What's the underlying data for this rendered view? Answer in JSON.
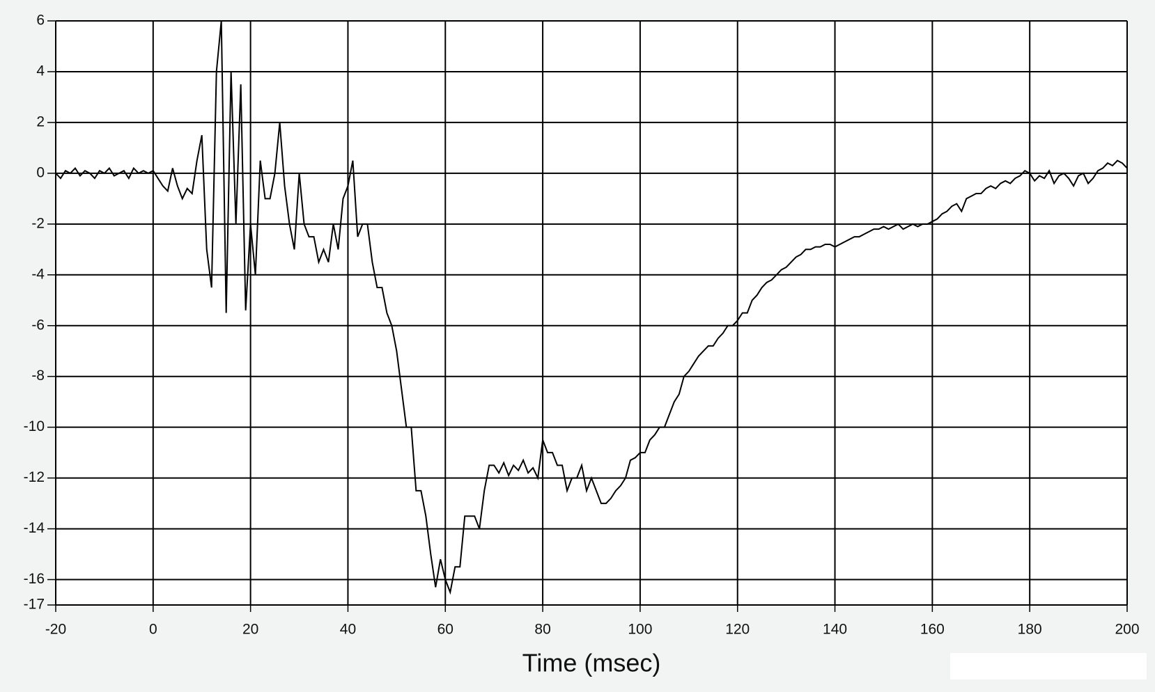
{
  "chart_data": {
    "type": "line",
    "x_label": "Time (msec)",
    "color": "#000000",
    "grid": true,
    "xlim": [
      -20,
      200
    ],
    "xticks": [
      -20,
      0,
      20,
      40,
      60,
      80,
      100,
      120,
      140,
      160,
      180,
      200
    ],
    "ylim": [
      -17,
      6
    ],
    "yticks": [
      6,
      4,
      2,
      0,
      -2,
      -4,
      -6,
      -8,
      -10,
      -12,
      -14,
      -16,
      -17
    ],
    "x": [
      -20,
      -19,
      -18,
      -17,
      -16,
      -15,
      -14,
      -13,
      -12,
      -11,
      -10,
      -9,
      -8,
      -7,
      -6,
      -5,
      -4,
      -3,
      -2,
      -1,
      0,
      1,
      2,
      3,
      4,
      5,
      6,
      7,
      8,
      9,
      10,
      11,
      12,
      13,
      14,
      15,
      16,
      17,
      18,
      19,
      20,
      21,
      22,
      23,
      24,
      25,
      26,
      27,
      28,
      29,
      30,
      31,
      32,
      33,
      34,
      35,
      36,
      37,
      38,
      39,
      40,
      41,
      42,
      43,
      44,
      45,
      46,
      47,
      48,
      49,
      50,
      51,
      52,
      53,
      54,
      55,
      56,
      57,
      58,
      59,
      60,
      61,
      62,
      63,
      64,
      65,
      66,
      67,
      68,
      69,
      70,
      71,
      72,
      73,
      74,
      75,
      76,
      77,
      78,
      79,
      80,
      81,
      82,
      83,
      84,
      85,
      86,
      87,
      88,
      89,
      90,
      91,
      92,
      93,
      94,
      95,
      96,
      97,
      98,
      99,
      100,
      101,
      102,
      103,
      104,
      105,
      106,
      107,
      108,
      109,
      110,
      111,
      112,
      113,
      114,
      115,
      116,
      117,
      118,
      119,
      120,
      121,
      122,
      123,
      124,
      125,
      126,
      127,
      128,
      129,
      130,
      131,
      132,
      133,
      134,
      135,
      136,
      137,
      138,
      139,
      140,
      141,
      142,
      143,
      144,
      145,
      146,
      147,
      148,
      149,
      150,
      151,
      152,
      153,
      154,
      155,
      156,
      157,
      158,
      159,
      160,
      161,
      162,
      163,
      164,
      165,
      166,
      167,
      168,
      169,
      170,
      171,
      172,
      173,
      174,
      175,
      176,
      177,
      178,
      179,
      180,
      181,
      182,
      183,
      184,
      185,
      186,
      187,
      188,
      189,
      190,
      191,
      192,
      193,
      194,
      195,
      196,
      197,
      198,
      199,
      200
    ],
    "values": [
      0,
      -0.2,
      0.1,
      0,
      0.2,
      -0.1,
      0.1,
      0,
      -0.2,
      0.1,
      0,
      0.2,
      -0.1,
      0,
      0.1,
      -0.2,
      0.2,
      0,
      0.1,
      0,
      0.1,
      -0.2,
      -0.5,
      -0.7,
      0.2,
      -0.5,
      -1,
      -0.6,
      -0.8,
      0.5,
      1.5,
      -3,
      -4.5,
      4,
      6,
      -5.5,
      4,
      -2,
      3.5,
      -5.4,
      -2,
      -4,
      0.5,
      -1,
      -1,
      0,
      2,
      -0.5,
      -2,
      -3,
      0,
      -2,
      -2.5,
      -2.5,
      -3.5,
      -3,
      -3.5,
      -2,
      -3,
      -1,
      -0.5,
      0.5,
      -2.5,
      -2,
      -2,
      -3.5,
      -4.5,
      -4.5,
      -5.5,
      -6,
      -7,
      -8.5,
      -10,
      -10,
      -12.5,
      -12.5,
      -13.5,
      -15,
      -16.3,
      -15.2,
      -16,
      -16.5,
      -15.5,
      -15.5,
      -13.5,
      -13.5,
      -13.5,
      -14,
      -12.5,
      -11.5,
      -11.5,
      -11.8,
      -11.4,
      -11.9,
      -11.5,
      -11.7,
      -11.3,
      -11.8,
      -11.6,
      -12,
      -10.5,
      -11,
      -11,
      -11.5,
      -11.5,
      -12.5,
      -12,
      -12,
      -11.5,
      -12.5,
      -12,
      -12.5,
      -13,
      -13,
      -12.8,
      -12.5,
      -12.3,
      -12,
      -11.3,
      -11.2,
      -11,
      -11,
      -10.5,
      -10.3,
      -10,
      -10,
      -9.5,
      -9,
      -8.7,
      -8,
      -7.8,
      -7.5,
      -7.2,
      -7,
      -6.8,
      -6.8,
      -6.5,
      -6.3,
      -6,
      -6,
      -5.8,
      -5.5,
      -5.5,
      -5,
      -4.8,
      -4.5,
      -4.3,
      -4.2,
      -4,
      -3.8,
      -3.7,
      -3.5,
      -3.3,
      -3.2,
      -3,
      -3,
      -2.9,
      -2.9,
      -2.8,
      -2.8,
      -2.9,
      -2.8,
      -2.7,
      -2.6,
      -2.5,
      -2.5,
      -2.4,
      -2.3,
      -2.2,
      -2.2,
      -2.1,
      -2.2,
      -2.1,
      -2,
      -2.2,
      -2.1,
      -2,
      -2.1,
      -2,
      -2,
      -1.9,
      -1.8,
      -1.6,
      -1.5,
      -1.3,
      -1.2,
      -1.5,
      -1,
      -0.9,
      -0.8,
      -0.8,
      -0.6,
      -0.5,
      -0.6,
      -0.4,
      -0.3,
      -0.4,
      -0.2,
      -0.1,
      0.1,
      0,
      -0.3,
      -0.1,
      -0.2,
      0.1,
      -0.4,
      -0.1,
      0,
      -0.2,
      -0.5,
      -0.1,
      0,
      -0.4,
      -0.2,
      0.1,
      0.2,
      0.4,
      0.3,
      0.5,
      0.4,
      0.2
    ]
  }
}
